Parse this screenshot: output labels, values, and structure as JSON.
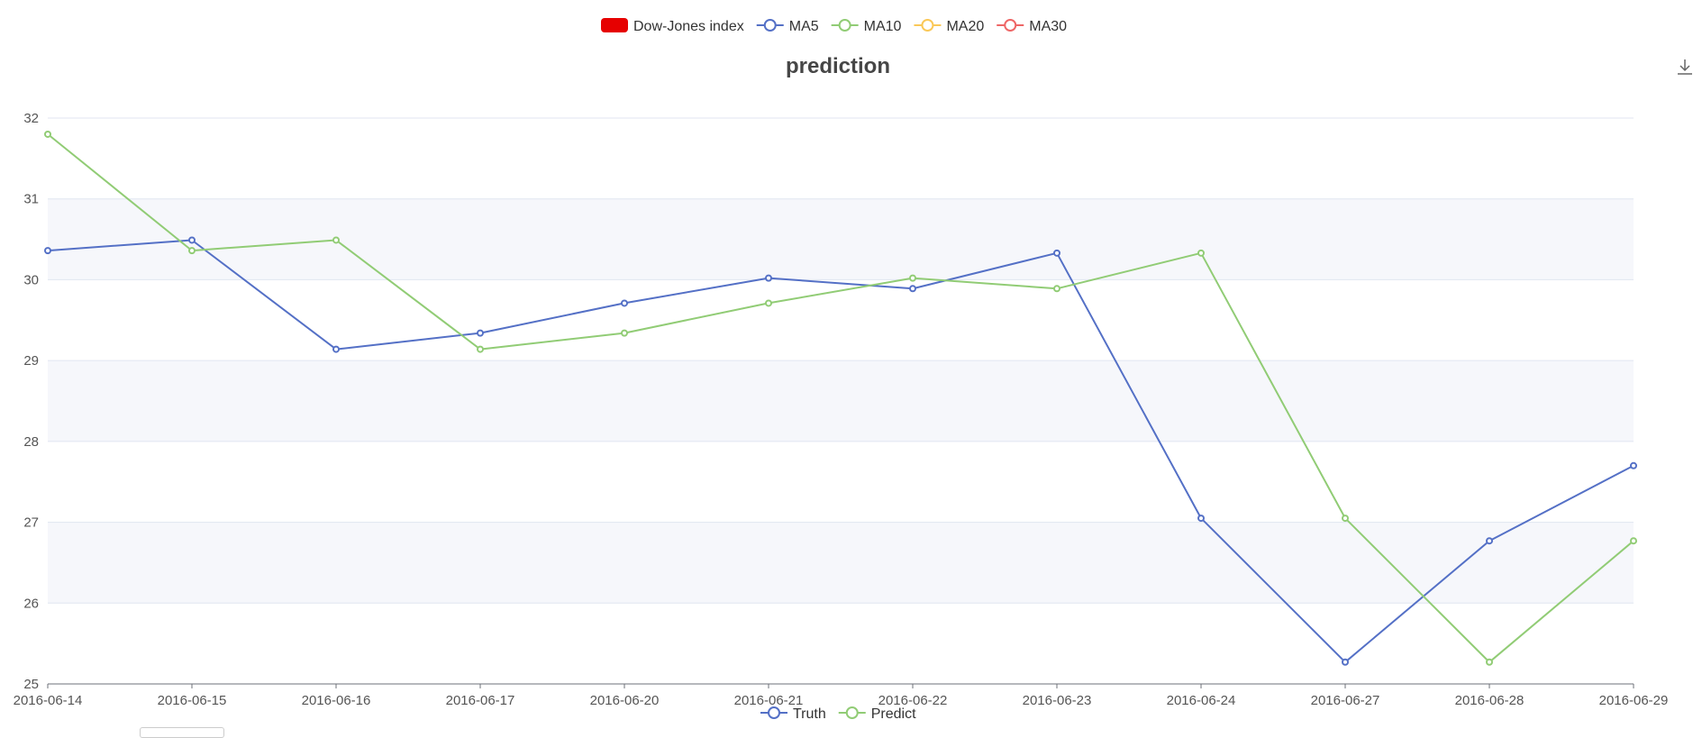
{
  "top_legend": [
    {
      "label": "Dow-Jones index",
      "color": "#e60000",
      "marker": "rect"
    },
    {
      "label": "MA5",
      "color": "#5470c6",
      "marker": "circle"
    },
    {
      "label": "MA10",
      "color": "#91cc75",
      "marker": "circle"
    },
    {
      "label": "MA20",
      "color": "#fac858",
      "marker": "circle"
    },
    {
      "label": "MA30",
      "color": "#ee6666",
      "marker": "circle"
    }
  ],
  "toolbox": {
    "icon": "download-icon"
  },
  "chart_data": {
    "type": "line",
    "title": "prediction",
    "xlabel": "",
    "ylabel": "",
    "x": [
      "2016-06-14",
      "2016-06-15",
      "2016-06-16",
      "2016-06-17",
      "2016-06-20",
      "2016-06-21",
      "2016-06-22",
      "2016-06-23",
      "2016-06-24",
      "2016-06-27",
      "2016-06-28",
      "2016-06-29"
    ],
    "ylim": [
      25,
      32
    ],
    "yticks": [
      25,
      26,
      27,
      28,
      29,
      30,
      31,
      32
    ],
    "grid": "alternating-bands",
    "legend_position": "bottom-center",
    "series": [
      {
        "name": "Truth",
        "color": "#5470c6",
        "values": [
          30.36,
          30.49,
          29.14,
          29.34,
          29.71,
          30.02,
          29.89,
          30.33,
          27.05,
          25.27,
          26.77,
          27.7
        ]
      },
      {
        "name": "Predict",
        "color": "#91cc75",
        "values": [
          31.8,
          30.36,
          30.49,
          29.14,
          29.34,
          29.71,
          30.02,
          29.89,
          30.33,
          27.05,
          25.27,
          26.77
        ]
      }
    ]
  }
}
